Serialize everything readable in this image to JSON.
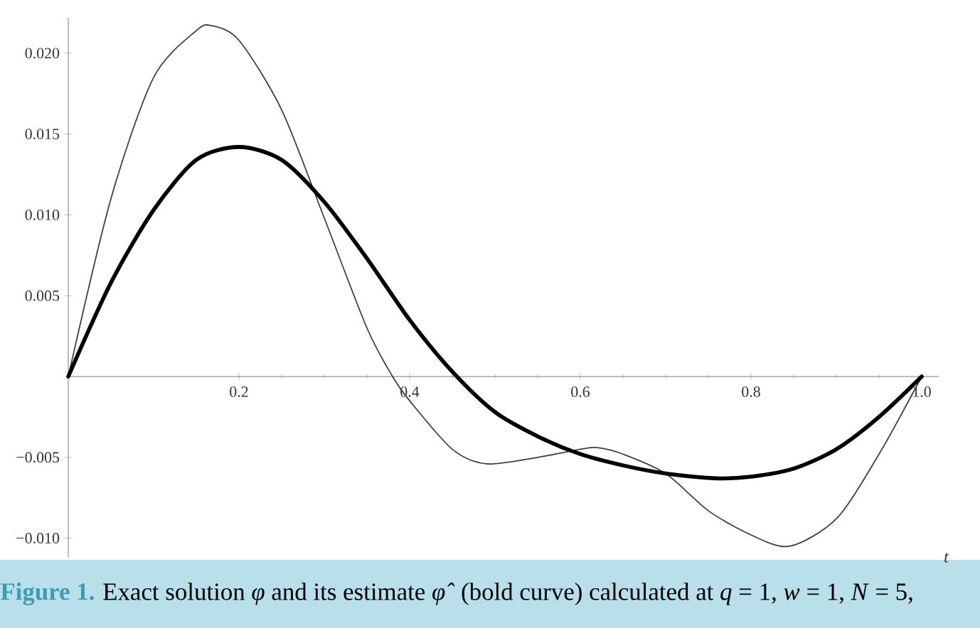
{
  "chart_data": {
    "type": "line",
    "xlabel": "*t*",
    "x": [
      0,
      0.05,
      0.1,
      0.15,
      0.2,
      0.25,
      0.3,
      0.35,
      0.4,
      0.45,
      0.5,
      0.55,
      0.6,
      0.65,
      0.7,
      0.76,
      0.8,
      0.85,
      0.9,
      0.95,
      1.0
    ],
    "series": [
      {
        "color": "#404040",
        "x": [
          0,
          0.05,
          0.1,
          0.15,
          0.168,
          0.2,
          0.25,
          0.3,
          0.35,
          0.38,
          0.4,
          0.45,
          0.49,
          0.55,
          0.6,
          0.62,
          0.65,
          0.7,
          0.75,
          0.8,
          0.845,
          0.9,
          0.95,
          1.0
        ],
        "values": [
          0,
          0.011,
          0.0185,
          0.0214,
          0.0217,
          0.0208,
          0.0165,
          0.0098,
          0.003,
          0,
          -0.0015,
          -0.0045,
          -0.0054,
          -0.005,
          -0.0045,
          -0.0044,
          -0.0048,
          -0.006,
          -0.0083,
          -0.0098,
          -0.0105,
          -0.0088,
          -0.0048,
          0
        ]
      },
      {
        "color": "#000000",
        "values": [
          0,
          0.0058,
          0.0103,
          0.0134,
          0.0142,
          0.0134,
          0.0108,
          0.0073,
          0.0035,
          0.0003,
          -0.0022,
          -0.0037,
          -0.0048,
          -0.0055,
          -0.006,
          -0.0063,
          -0.0062,
          -0.0057,
          -0.0045,
          -0.0025,
          0
        ]
      }
    ],
    "xlim": [
      0,
      1.02
    ],
    "ylim": [
      -0.0112,
      0.0222
    ],
    "xticks": [
      0.2,
      0.4,
      0.6,
      0.8,
      {
        "value": 1.0,
        "label": "1.0"
      }
    ],
    "yticks": [
      {
        "value": -0.01,
        "label": "−0.010"
      },
      {
        "value": -0.005,
        "label": "−0.005"
      },
      0.005,
      {
        "value": 0.01,
        "label": "0.010"
      },
      0.015,
      {
        "value": 0.02,
        "label": "0.020"
      }
    ],
    "grid": false,
    "marker": "none",
    "line_style": "solid",
    "annotations": [
      "Figure 1.",
      "Exact solution *φ* and its estimate *φ̂* (bold curve) calculated at *q* = 1, *w* = 1, *N* = 5,"
    ]
  }
}
